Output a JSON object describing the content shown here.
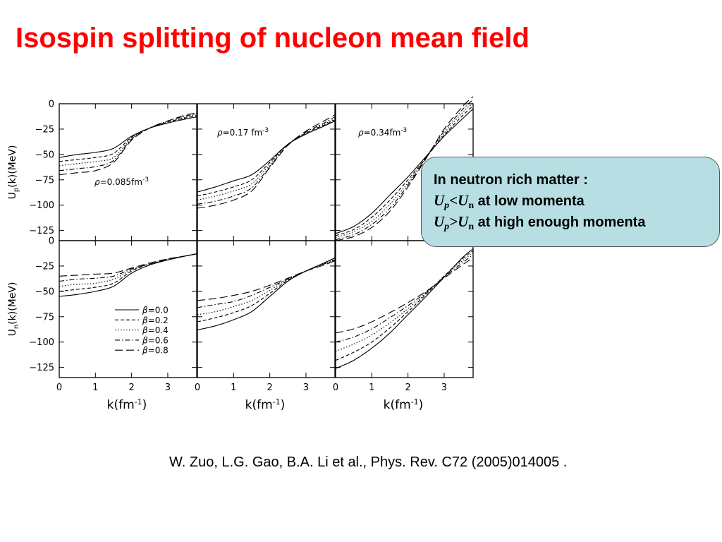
{
  "title": "Isospin splitting of nucleon mean field",
  "citation": "W. Zuo, L.G. Gao, B.A. Li et al., Phys. Rev. C72 (2005)014005 .",
  "callout": {
    "line1": "In neutron rich matter :",
    "line2_sym_a": "U",
    "line2_sub_a": "p",
    "line2_op": "<",
    "line2_sym_b": "U",
    "line2_sub_b": "n",
    "line2_text": " at low momenta",
    "line3_sym_a": "U",
    "line3_sub_a": "p",
    "line3_op": ">",
    "line3_sym_b": "U",
    "line3_sub_b": "n",
    "line3_text": " at high enough momenta",
    "bg_color": "#b7dfe3"
  },
  "colors": {
    "title": "#ff0000"
  },
  "chart_data": {
    "type": "line",
    "grid": false,
    "xlim": [
      0,
      3.8
    ],
    "ylim": [
      -135,
      0
    ],
    "x_ticks": [
      0,
      1,
      2,
      3
    ],
    "y_ticks": [
      0,
      -25,
      -50,
      -75,
      -100,
      -125
    ],
    "xlabel": "k(fm",
    "xlabel_sup": "-1",
    "xlabel_close": ")",
    "row_ylabels": [
      {
        "main": "U",
        "sub": "p",
        "rest": "(k)(MeV)"
      },
      {
        "main": "U",
        "sub": "n",
        "rest": "(k)(MeV)"
      }
    ],
    "density_labels": [
      {
        "sym": "ρ",
        "text": "=0.085fm",
        "sup": "-3"
      },
      {
        "sym": "ρ",
        "text": "=0.17  fm",
        "sup": "-3"
      },
      {
        "sym": "ρ",
        "text": "=0.34fm",
        "sup": "-3"
      }
    ],
    "legend": {
      "placement": "bottom-right of lower-left panel",
      "entries": [
        "β=0.0",
        "β=0.2",
        "β=0.4",
        "β=0.6",
        "β=0.8"
      ]
    },
    "x": [
      0,
      0.5,
      1,
      1.5,
      2,
      2.5,
      3,
      3.5,
      3.8
    ],
    "panels": [
      {
        "row": "proton",
        "density": "0.085",
        "series": [
          {
            "beta": "0.0",
            "values": [
              -53,
              -50,
              -48,
              -44,
              -32,
              -24,
              -19,
              -15,
              -13
            ]
          },
          {
            "beta": "0.2",
            "values": [
              -57,
              -55,
              -53,
              -49,
              -33,
              -24,
              -18,
              -14,
              -12
            ]
          },
          {
            "beta": "0.4",
            "values": [
              -61,
              -59,
              -57,
              -53,
              -34,
              -24,
              -18,
              -13,
              -11
            ]
          },
          {
            "beta": "0.6",
            "values": [
              -66,
              -64,
              -62,
              -56,
              -35,
              -24,
              -17,
              -12,
              -10
            ]
          },
          {
            "beta": "0.8",
            "values": [
              -70,
              -68,
              -66,
              -58,
              -36,
              -24,
              -17,
              -11,
              -9
            ]
          }
        ]
      },
      {
        "row": "proton",
        "density": "0.17",
        "series": [
          {
            "beta": "0.0",
            "values": [
              -87,
              -82,
              -76,
              -70,
              -56,
              -40,
              -30,
              -22,
              -17
            ]
          },
          {
            "beta": "0.2",
            "values": [
              -91,
              -87,
              -82,
              -75,
              -58,
              -40,
              -29,
              -21,
              -16
            ]
          },
          {
            "beta": "0.4",
            "values": [
              -95,
              -91,
              -86,
              -79,
              -60,
              -40,
              -29,
              -20,
              -15
            ]
          },
          {
            "beta": "0.6",
            "values": [
              -99,
              -96,
              -91,
              -83,
              -62,
              -41,
              -28,
              -19,
              -13
            ]
          },
          {
            "beta": "0.8",
            "values": [
              -103,
              -100,
              -95,
              -86,
              -63,
              -41,
              -27,
              -17,
              -11
            ]
          }
        ]
      },
      {
        "row": "proton",
        "density": "0.34",
        "series": [
          {
            "beta": "0.0",
            "values": [
              -128,
              -121,
              -108,
              -90,
              -72,
              -52,
              -32,
              -15,
              -5
            ]
          },
          {
            "beta": "0.2",
            "values": [
              -130,
              -124,
              -112,
              -95,
              -75,
              -53,
              -31,
              -12,
              -2
            ]
          },
          {
            "beta": "0.4",
            "values": [
              -132,
              -126,
              -116,
              -99,
              -78,
              -53,
              -29,
              -9,
              1
            ]
          },
          {
            "beta": "0.6",
            "values": [
              -134,
              -129,
              -119,
              -103,
              -80,
              -53,
              -27,
              -6,
              4
            ]
          },
          {
            "beta": "0.8",
            "values": [
              -135,
              -131,
              -122,
              -106,
              -82,
              -54,
              -25,
              -3,
              7
            ]
          }
        ]
      },
      {
        "row": "neutron",
        "density": "0.085",
        "series": [
          {
            "beta": "0.0",
            "values": [
              -55,
              -53,
              -50,
              -45,
              -32,
              -24,
              -19,
              -15,
              -13
            ]
          },
          {
            "beta": "0.2",
            "values": [
              -50,
              -48,
              -46,
              -42,
              -30,
              -23,
              -19,
              -15,
              -13
            ]
          },
          {
            "beta": "0.4",
            "values": [
              -45,
              -43,
              -42,
              -38,
              -29,
              -23,
              -19,
              -15,
              -13
            ]
          },
          {
            "beta": "0.6",
            "values": [
              -40,
              -38,
              -37,
              -35,
              -28,
              -23,
              -18,
              -15,
              -13
            ]
          },
          {
            "beta": "0.8",
            "values": [
              -35,
              -34,
              -33,
              -32,
              -27,
              -22,
              -18,
              -15,
              -13
            ]
          }
        ]
      },
      {
        "row": "neutron",
        "density": "0.17",
        "series": [
          {
            "beta": "0.0",
            "values": [
              -88,
              -84,
              -78,
              -70,
              -55,
              -40,
              -30,
              -22,
              -17
            ]
          },
          {
            "beta": "0.2",
            "values": [
              -80,
              -76,
              -71,
              -64,
              -52,
              -39,
              -30,
              -22,
              -17
            ]
          },
          {
            "beta": "0.4",
            "values": [
              -73,
              -70,
              -65,
              -59,
              -49,
              -38,
              -30,
              -23,
              -18
            ]
          },
          {
            "beta": "0.6",
            "values": [
              -66,
              -63,
              -60,
              -54,
              -46,
              -38,
              -30,
              -23,
              -19
            ]
          },
          {
            "beta": "0.8",
            "values": [
              -59,
              -57,
              -54,
              -50,
              -44,
              -37,
              -30,
              -24,
              -20
            ]
          }
        ]
      },
      {
        "row": "neutron",
        "density": "0.34",
        "series": [
          {
            "beta": "0.0",
            "values": [
              -126,
              -118,
              -106,
              -91,
              -73,
              -55,
              -36,
              -17,
              -8
            ]
          },
          {
            "beta": "0.2",
            "values": [
              -118,
              -110,
              -100,
              -86,
              -70,
              -53,
              -35,
              -18,
              -10
            ]
          },
          {
            "beta": "0.4",
            "values": [
              -109,
              -102,
              -93,
              -81,
              -67,
              -52,
              -35,
              -20,
              -12
            ]
          },
          {
            "beta": "0.6",
            "values": [
              -100,
              -95,
              -87,
              -76,
              -64,
              -51,
              -36,
              -22,
              -14
            ]
          },
          {
            "beta": "0.8",
            "values": [
              -91,
              -87,
              -80,
              -71,
              -61,
              -50,
              -37,
              -24,
              -17
            ]
          }
        ]
      }
    ]
  }
}
